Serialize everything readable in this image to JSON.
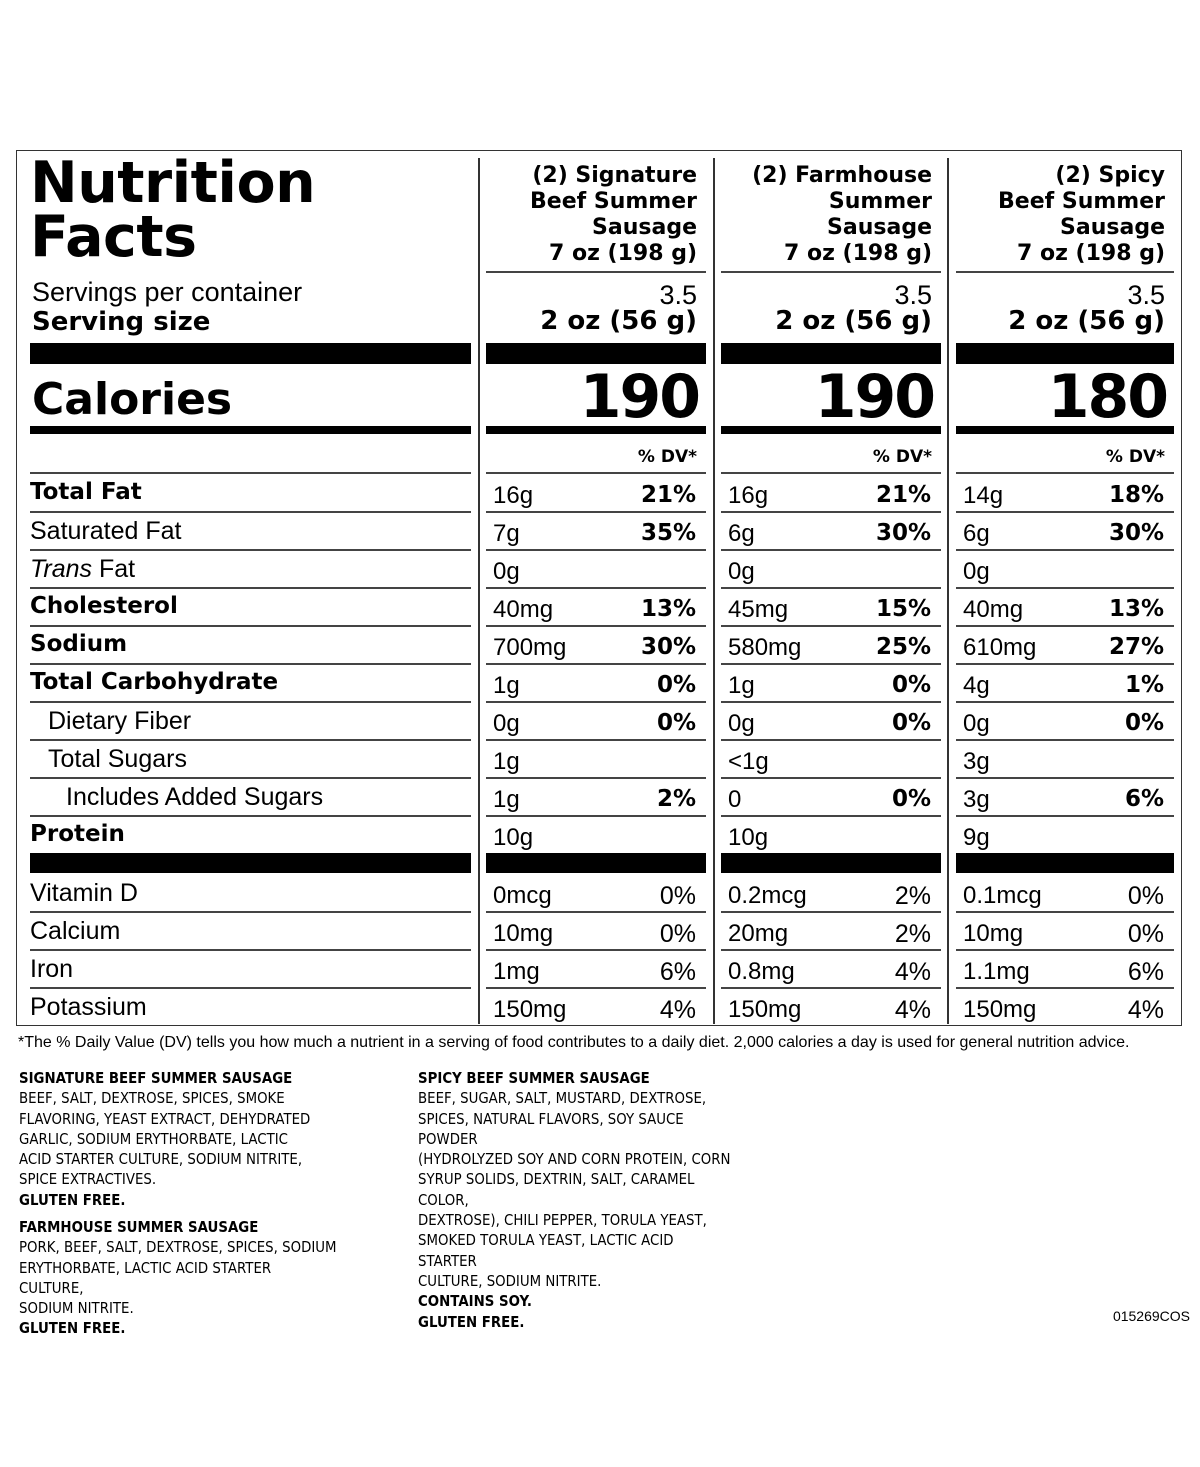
{
  "panel": {
    "title_line1": "Nutrition",
    "title_line2": "Facts",
    "servings_label": "Servings per container",
    "serving_size_label": "Serving size",
    "calories_label": "Calories",
    "nutrients": [
      {
        "label": "Total Fat"
      },
      {
        "label": "Saturated Fat"
      },
      {
        "label_italic": "Trans",
        "label": " Fat"
      },
      {
        "label": "Cholesterol"
      },
      {
        "label": "Sodium"
      },
      {
        "label": "Total Carbohydrate"
      },
      {
        "label": "Dietary Fiber"
      },
      {
        "label": "Total Sugars"
      },
      {
        "label": "Includes Added Sugars"
      },
      {
        "label": "Protein"
      }
    ],
    "vitamins": [
      {
        "label": "Vitamin D"
      },
      {
        "label": "Calcium"
      },
      {
        "label": "Iron"
      },
      {
        "label": "Potassium"
      }
    ],
    "columns": [
      {
        "heading": [
          "(2) Signature",
          "Beef Summer",
          "Sausage",
          "7 oz (198 g)"
        ],
        "servings": "3.5",
        "serving_size": "2 oz (56 g)",
        "calories": "190",
        "dv_header": "% DV*",
        "nutrients": [
          {
            "amount": "16g",
            "dv": "21%"
          },
          {
            "amount": "7g",
            "dv": "35%"
          },
          {
            "amount": "0g",
            "dv": ""
          },
          {
            "amount": "40mg",
            "dv": "13%"
          },
          {
            "amount": "700mg",
            "dv": "30%"
          },
          {
            "amount": "1g",
            "dv": "0%"
          },
          {
            "amount": "0g",
            "dv": "0%"
          },
          {
            "amount": "1g",
            "dv": ""
          },
          {
            "amount": "1g",
            "dv": "2%"
          },
          {
            "amount": "10g",
            "dv": ""
          }
        ],
        "vitamins": [
          {
            "amount": "0mcg",
            "dv": "0%"
          },
          {
            "amount": "10mg",
            "dv": "0%"
          },
          {
            "amount": "1mg",
            "dv": "6%"
          },
          {
            "amount": "150mg",
            "dv": "4%"
          }
        ]
      },
      {
        "heading": [
          "(2) Farmhouse",
          "Summer",
          "Sausage",
          "7 oz (198 g)"
        ],
        "servings": "3.5",
        "serving_size": "2 oz (56 g)",
        "calories": "190",
        "dv_header": "% DV*",
        "nutrients": [
          {
            "amount": "16g",
            "dv": "21%"
          },
          {
            "amount": "6g",
            "dv": "30%"
          },
          {
            "amount": "0g",
            "dv": ""
          },
          {
            "amount": "45mg",
            "dv": "15%"
          },
          {
            "amount": "580mg",
            "dv": "25%"
          },
          {
            "amount": "1g",
            "dv": "0%"
          },
          {
            "amount": "0g",
            "dv": "0%"
          },
          {
            "amount": "<1g",
            "dv": ""
          },
          {
            "amount": "0",
            "dv": "0%"
          },
          {
            "amount": "10g",
            "dv": ""
          }
        ],
        "vitamins": [
          {
            "amount": "0.2mcg",
            "dv": "2%"
          },
          {
            "amount": "20mg",
            "dv": "2%"
          },
          {
            "amount": "0.8mg",
            "dv": "4%"
          },
          {
            "amount": "150mg",
            "dv": "4%"
          }
        ]
      },
      {
        "heading": [
          "(2) Spicy",
          "Beef Summer",
          "Sausage",
          "7 oz (198 g)"
        ],
        "servings": "3.5",
        "serving_size": "2 oz (56 g)",
        "calories": "180",
        "dv_header": "% DV*",
        "nutrients": [
          {
            "amount": "14g",
            "dv": "18%"
          },
          {
            "amount": "6g",
            "dv": "30%"
          },
          {
            "amount": "0g",
            "dv": ""
          },
          {
            "amount": "40mg",
            "dv": "13%"
          },
          {
            "amount": "610mg",
            "dv": "27%"
          },
          {
            "amount": "4g",
            "dv": "1%"
          },
          {
            "amount": "0g",
            "dv": "0%"
          },
          {
            "amount": "3g",
            "dv": ""
          },
          {
            "amount": "3g",
            "dv": "6%"
          },
          {
            "amount": "9g",
            "dv": ""
          }
        ],
        "vitamins": [
          {
            "amount": "0.1mcg",
            "dv": "0%"
          },
          {
            "amount": "10mg",
            "dv": "0%"
          },
          {
            "amount": "1.1mg",
            "dv": "6%"
          },
          {
            "amount": "150mg",
            "dv": "4%"
          }
        ]
      }
    ]
  },
  "footnote": "*The % Daily Value (DV) tells you how much a nutrient in a serving of food contributes to a daily diet. 2,000 calories a day is used for general nutrition advice.",
  "ingredients": {
    "signature": {
      "heading": "SIGNATURE BEEF SUMMER SAUSAGE",
      "lines": [
        "BEEF, SALT, DEXTROSE, SPICES, SMOKE",
        "FLAVORING, YEAST EXTRACT, DEHYDRATED",
        "GARLIC, SODIUM ERYTHORBATE, LACTIC",
        "ACID STARTER CULTURE, SODIUM NITRITE,",
        "SPICE EXTRACTIVES."
      ],
      "statements": [
        "GLUTEN FREE."
      ]
    },
    "farmhouse": {
      "heading": "FARMHOUSE SUMMER SAUSAGE",
      "lines": [
        "PORK, BEEF, SALT, DEXTROSE, SPICES, SODIUM",
        "ERYTHORBATE, LACTIC ACID STARTER CULTURE,",
        "SODIUM NITRITE."
      ],
      "statements": [
        "GLUTEN FREE."
      ]
    },
    "spicy": {
      "heading": "SPICY BEEF SUMMER SAUSAGE",
      "lines": [
        "BEEF, SUGAR, SALT, MUSTARD, DEXTROSE,",
        "SPICES, NATURAL FLAVORS, SOY SAUCE POWDER",
        "(HYDROLYZED SOY AND CORN PROTEIN, CORN",
        "SYRUP SOLIDS, DEXTRIN, SALT, CARAMEL COLOR,",
        "DEXTROSE), CHILI PEPPER, TORULA YEAST,",
        "SMOKED TORULA YEAST, LACTIC ACID STARTER",
        "CULTURE, SODIUM NITRITE."
      ],
      "statements": [
        "CONTAINS SOY.",
        "GLUTEN FREE."
      ]
    }
  },
  "product_code": "015269COS"
}
